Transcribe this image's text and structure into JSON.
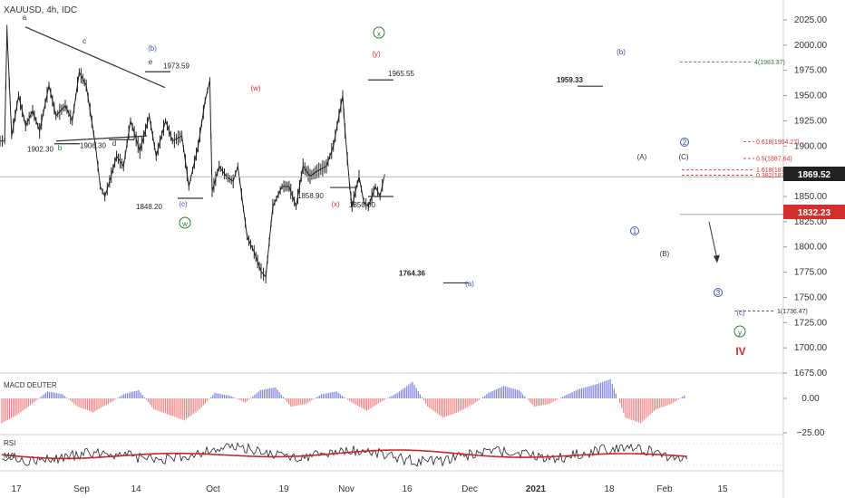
{
  "header": {
    "symbol": "XAUUSD, 4h, IDC"
  },
  "colors": {
    "candle": "#222222",
    "wave_black": "#333333",
    "wave_green": "#2e7d32",
    "wave_blue": "#3f51b5",
    "wave_red": "#d32f2f",
    "macd_pos": "#7b7fe0",
    "macd_neg": "#f08080",
    "rsi_line": "#222222",
    "rsi_ma": "#c62828",
    "price_badge_dark": "#222222",
    "price_badge_red": "#d32f2f"
  },
  "chart_data": {
    "type": "line",
    "title": "XAUUSD, 4h, IDC",
    "x_ticks": [
      "17",
      "Sep",
      "14",
      "Oct",
      "19",
      "Nov",
      "16",
      "Dec",
      "2021",
      "18",
      "Feb",
      "15"
    ],
    "y_ticks": [
      "2025.00",
      "2000.00",
      "1975.00",
      "1950.00",
      "1925.00",
      "1900.00",
      "1875.00",
      "1850.00",
      "1825.00",
      "1800.00",
      "1775.00",
      "1750.00",
      "1725.00",
      "1700.00",
      "1675.00"
    ],
    "ylim": [
      1663,
      2040
    ],
    "price_path": {
      "x": [
        "Aug 10",
        "Aug 12",
        "Aug 13",
        "Aug 15",
        "Aug 18",
        "Aug 21",
        "Aug 24",
        "Aug 27",
        "Aug 31",
        "Sep 3",
        "Sep 7",
        "Sep 10",
        "Sep 13",
        "Sep 16",
        "Sep 20",
        "Sep 22",
        "Sep 24",
        "Sep 26",
        "Sep 29",
        "Oct 2",
        "Oct 5",
        "Oct 9",
        "Oct 13",
        "Oct 16",
        "Oct 20",
        "Oct 23",
        "Oct 27",
        "Oct 30",
        "Nov 3",
        "Nov 6",
        "Nov 8",
        "Nov 9",
        "Nov 12",
        "Nov 15",
        "Nov 18",
        "Nov 20",
        "Nov 24",
        "Nov 27",
        "Nov 30",
        "Dec 2",
        "Dec 5",
        "Dec 9",
        "Dec 12",
        "Dec 15",
        "Dec 18",
        "Dec 21",
        "Dec 24",
        "Dec 28",
        "Dec 31",
        "Jan 4",
        "Jan 5",
        "Jan 7",
        "Jan 8",
        "Jan 11",
        "Jan 13",
        "Jan 15",
        "Jan 18",
        "Jan 20",
        "Jan 22"
      ],
      "y": [
        1905,
        1905,
        2015,
        1910,
        1950,
        1920,
        1935,
        1915,
        1960,
        1930,
        1940,
        1925,
        1973,
        1960,
        1900,
        1860,
        1850,
        1865,
        1890,
        1880,
        1925,
        1895,
        1930,
        1890,
        1925,
        1905,
        1910,
        1860,
        1900,
        1945,
        1965,
        1855,
        1880,
        1870,
        1865,
        1880,
        1810,
        1795,
        1776,
        1770,
        1840,
        1860,
        1860,
        1840,
        1880,
        1870,
        1875,
        1880,
        1900,
        1950,
        1915,
        1860,
        1840,
        1870,
        1845,
        1840,
        1860,
        1850,
        1872
      ]
    },
    "current_price": "1869.52",
    "marked_level": "1832.23",
    "projection": {
      "from": "1832.23",
      "to": "1785"
    },
    "fib_levels": [
      {
        "label": "0.618(1904.27)",
        "value": 1904.27
      },
      {
        "label": "0.5(1887.64)",
        "value": 1887.64
      },
      {
        "label": "1.618(1876.29)",
        "value": 1876.29
      },
      {
        "label": "0.382(1871.02)",
        "value": 1871.02
      },
      {
        "label": "4(1983.37)",
        "value": 1983.37
      },
      {
        "label": "1(1736.47)",
        "value": 1736.47
      }
    ],
    "price_labels": [
      "1973.59",
      "1902.30",
      "1906.30",
      "1848.20",
      "1858.90",
      "1850.00",
      "1965.55",
      "1764.36",
      "1959.33"
    ],
    "wave_labels": [
      {
        "text": "a",
        "color": "black"
      },
      {
        "text": "b",
        "color": "green"
      },
      {
        "text": "c",
        "color": "black"
      },
      {
        "text": "d",
        "color": "black"
      },
      {
        "text": "e",
        "color": "black"
      },
      {
        "text": "(b)",
        "color": "blue"
      },
      {
        "text": "(c)",
        "color": "blue"
      },
      {
        "text": "w",
        "color": "green"
      },
      {
        "text": "(w)",
        "color": "red"
      },
      {
        "text": "(x)",
        "color": "red"
      },
      {
        "text": "(y)",
        "color": "red"
      },
      {
        "text": "x",
        "color": "green"
      },
      {
        "text": "(a)",
        "color": "blue"
      },
      {
        "text": "(b)",
        "color": "blue"
      },
      {
        "text": "(c)",
        "color": "blue"
      },
      {
        "text": "y",
        "color": "green"
      },
      {
        "text": "IV",
        "color": "red"
      },
      {
        "text": "(A)",
        "color": "black"
      },
      {
        "text": "(B)",
        "color": "black"
      },
      {
        "text": "(C)",
        "color": "black"
      },
      {
        "text": "1",
        "color": "blue"
      },
      {
        "text": "2",
        "color": "blue"
      },
      {
        "text": "3",
        "color": "blue"
      }
    ],
    "macd": {
      "title": "MACD DEUTER",
      "y_ticks": [
        "0.00",
        "−25.00"
      ],
      "values": [
        -18,
        -12,
        -4,
        5,
        3,
        -6,
        -10,
        -4,
        3,
        6,
        -8,
        -12,
        -16,
        -8,
        4,
        2,
        -3,
        6,
        8,
        -6,
        -4,
        3,
        5,
        -3,
        -9,
        -2,
        4,
        12,
        -6,
        -14,
        -10,
        -4,
        4,
        9,
        6,
        -6,
        -4,
        2,
        7,
        10,
        14,
        -14,
        -18,
        -8,
        -4,
        3
      ]
    },
    "rsi": {
      "title": "RSI",
      "ma_label": "MA"
    }
  }
}
